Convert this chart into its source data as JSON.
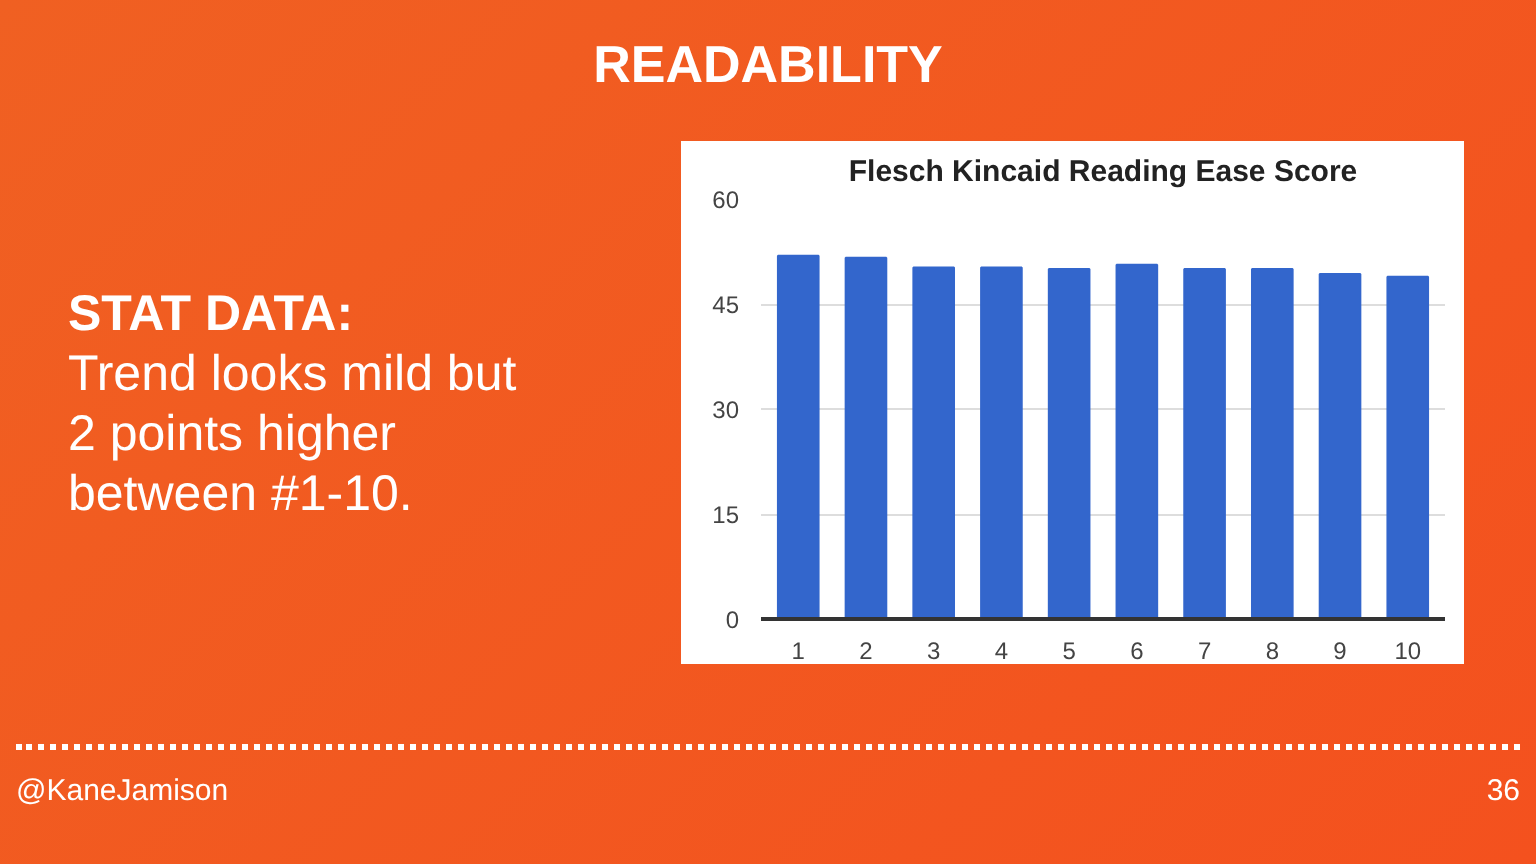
{
  "chart_data": {
    "type": "bar",
    "title": "Flesch Kincaid Reading Ease Score",
    "categories": [
      "1",
      "2",
      "3",
      "4",
      "5",
      "6",
      "7",
      "8",
      "9",
      "10"
    ],
    "values": [
      51.9,
      51.6,
      50.2,
      50.2,
      50.0,
      50.6,
      50.0,
      50.0,
      49.3,
      48.9
    ],
    "color": "#3366cc",
    "ylim": [
      0,
      60
    ],
    "yticks": [
      0,
      15,
      30,
      45,
      60
    ],
    "grid": "y",
    "annotations": [
      "READABILITY",
      "STAT DATA:",
      "Trend looks mild but\n2 points higher\nbetween #1-10.",
      "@KaneJamison",
      "36"
    ]
  }
}
